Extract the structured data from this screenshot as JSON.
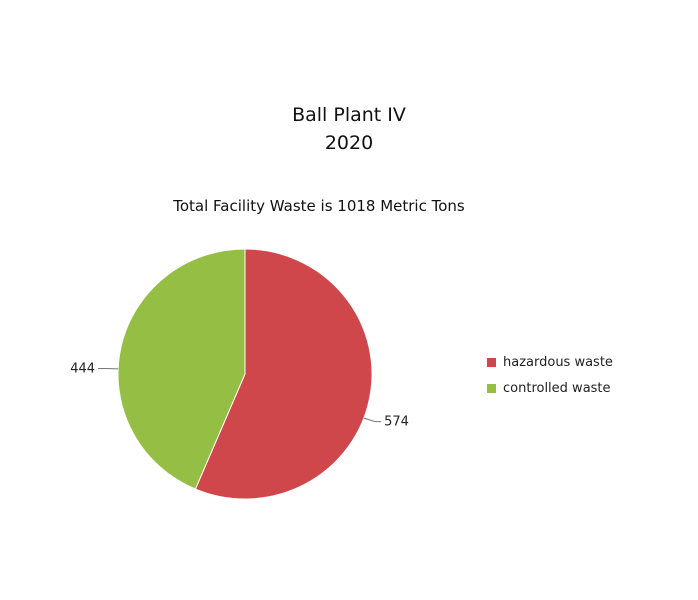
{
  "chart_data": {
    "type": "pie",
    "title": [
      "Ball Plant IV",
      "2020"
    ],
    "subtitle": "Total Facility Waste is 1018 Metric Tons",
    "categories": [
      "hazardous waste",
      "controlled waste"
    ],
    "values": [
      574,
      444
    ],
    "data_labels": [
      "574",
      "444"
    ],
    "colors": [
      "#cf474b",
      "#95bf44"
    ],
    "legend": {
      "position": "right",
      "entries": [
        "hazardous waste",
        "controlled waste"
      ]
    }
  }
}
